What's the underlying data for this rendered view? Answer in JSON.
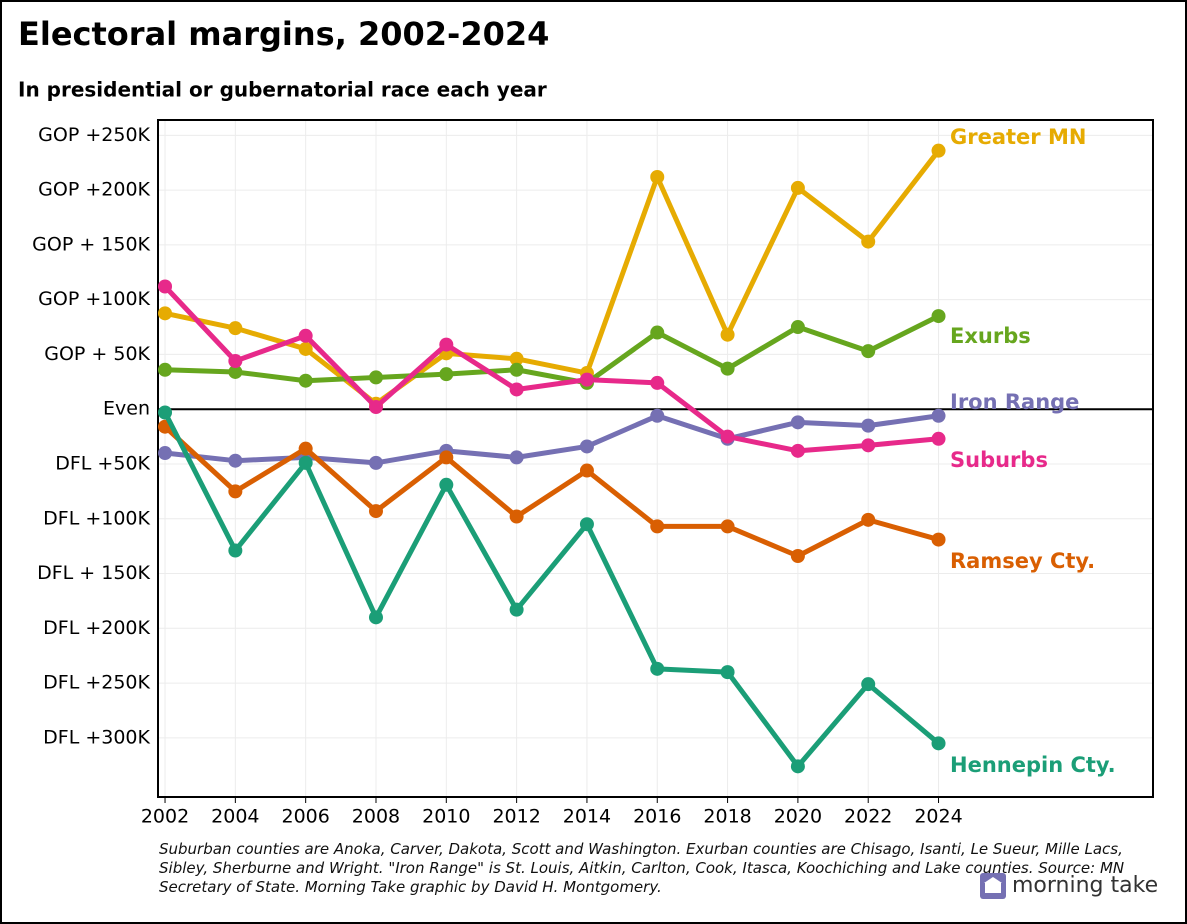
{
  "chart_data": {
    "type": "line",
    "title": "Electoral margins, 2002-2024",
    "subtitle": "In presidential or gubernatorial race each year",
    "note": "Suburban counties are Anoka, Carver, Dakota, Scott and Washington. Exurban counties are Chisago, Isanti, Le Sueur, Mille Lacs, Sibley, Sherburne and Wright. \"Iron Range\" is St. Louis, Aitkin, Carlton, Cook, Itasca, Koochiching and Lake counties. Source: MN Secretary of State. Morning Take graphic by David H. Montgomery.",
    "logo": "morning take",
    "x": [
      2002,
      2004,
      2006,
      2008,
      2010,
      2012,
      2014,
      2016,
      2018,
      2020,
      2022,
      2024
    ],
    "xlim": [
      2001.8,
      2030.1
    ],
    "xticks": [
      2002,
      2004,
      2006,
      2008,
      2010,
      2012,
      2014,
      2016,
      2018,
      2020,
      2022,
      2024
    ],
    "ylim": [
      -354000,
      264000
    ],
    "yticks": [
      {
        "value": 250000,
        "label": "GOP +250K"
      },
      {
        "value": 200000,
        "label": "GOP +200K"
      },
      {
        "value": 150000,
        "label": "GOP + 150K"
      },
      {
        "value": 100000,
        "label": "GOP +100K"
      },
      {
        "value": 50000,
        "label": "GOP + 50K"
      },
      {
        "value": 0,
        "label": "Even"
      },
      {
        "value": -50000,
        "label": "DFL +50K"
      },
      {
        "value": -100000,
        "label": "DFL +100K"
      },
      {
        "value": -150000,
        "label": "DFL + 150K"
      },
      {
        "value": -200000,
        "label": "DFL +200K"
      },
      {
        "value": -250000,
        "label": "DFL +250K"
      },
      {
        "value": -300000,
        "label": "DFL +300K"
      }
    ],
    "grid": true,
    "series": [
      {
        "name": "Greater MN",
        "color": "#e6ab02",
        "values": [
          87500,
          74000,
          55000,
          5000,
          51000,
          46000,
          33000,
          212000,
          68000,
          202000,
          153000,
          236000
        ]
      },
      {
        "name": "Exurbs",
        "color": "#66a61e",
        "values": [
          36000,
          34000,
          26000,
          29000,
          32000,
          36000,
          24000,
          70000,
          37000,
          75000,
          53000,
          85000
        ]
      },
      {
        "name": "Iron Range",
        "color": "#7570b3",
        "values": [
          -40000,
          -47000,
          -44000,
          -49000,
          -38000,
          -44000,
          -34000,
          -6000,
          -27000,
          -12000,
          -15000,
          -6000
        ]
      },
      {
        "name": "Suburbs",
        "color": "#e7298a",
        "values": [
          112000,
          44000,
          67000,
          2000,
          59000,
          18000,
          27000,
          24000,
          -25000,
          -38000,
          -33000,
          -27000
        ]
      },
      {
        "name": "Ramsey Cty.",
        "color": "#d95f02",
        "values": [
          -16000,
          -75000,
          -36000,
          -93000,
          -44000,
          -98000,
          -56000,
          -107000,
          -107000,
          -134000,
          -101000,
          -119000
        ]
      },
      {
        "name": "Hennepin Cty.",
        "color": "#1b9e77",
        "values": [
          -3000,
          -129000,
          -49000,
          -190000,
          -69000,
          -183000,
          -105000,
          -237000,
          -240000,
          -326000,
          -251000,
          -305000
        ]
      }
    ]
  }
}
